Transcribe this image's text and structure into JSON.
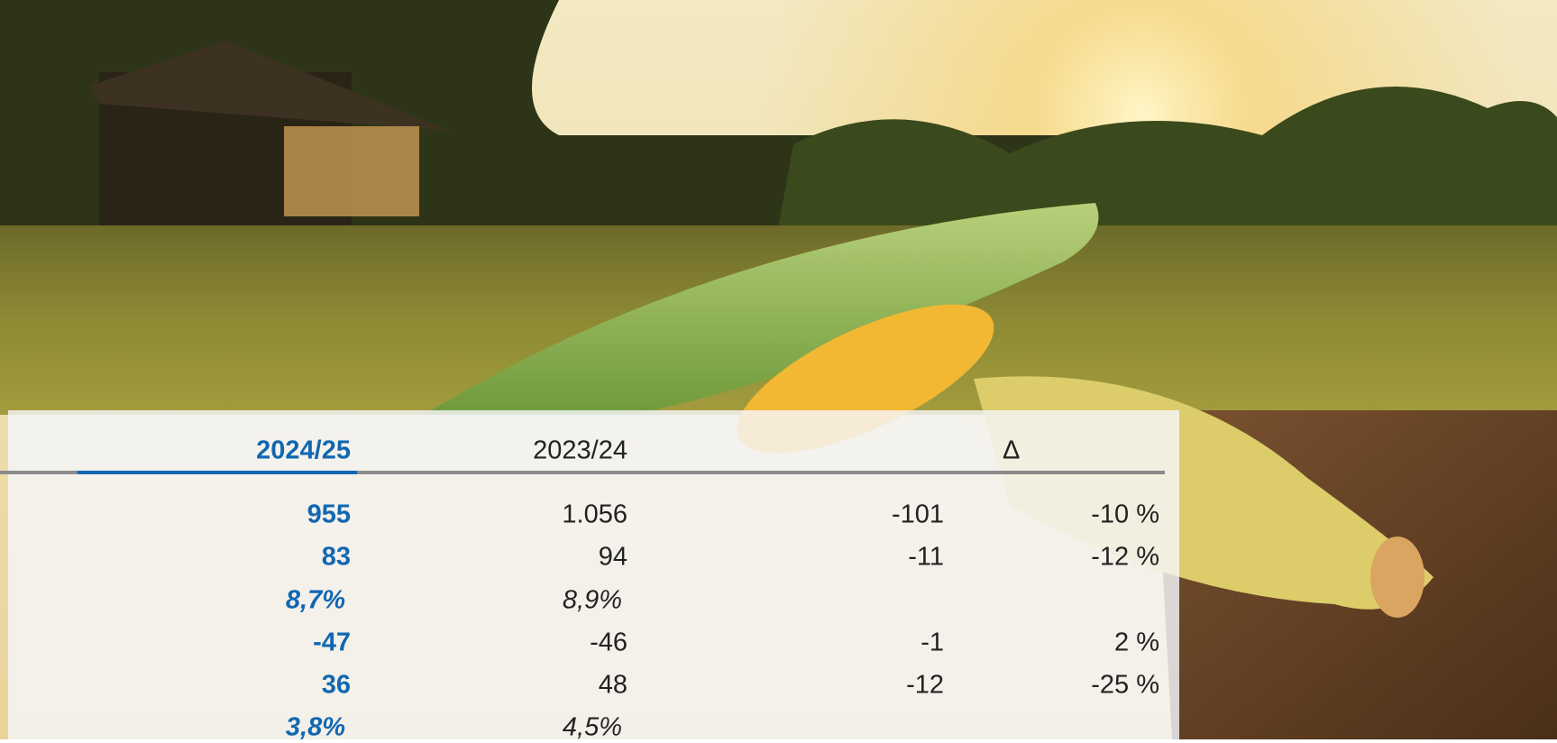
{
  "table": {
    "header": {
      "current": "2024/25",
      "previous": "2023/24",
      "delta": "Δ"
    },
    "rows": [
      {
        "current": "955",
        "previous": "1.056",
        "delta": "-101",
        "delta_pct": "-10 %"
      },
      {
        "current": "83",
        "previous": "94",
        "delta": "-11",
        "delta_pct": "-12 %"
      },
      {
        "current": "8,7%",
        "previous": "8,9%"
      },
      {
        "current": "-47",
        "previous": "-46",
        "delta": "-1",
        "delta_pct": "2 %"
      },
      {
        "current": "36",
        "previous": "48",
        "delta": "-12",
        "delta_pct": "-25 %"
      },
      {
        "current": "3,8%",
        "previous": "4,5%"
      }
    ]
  }
}
